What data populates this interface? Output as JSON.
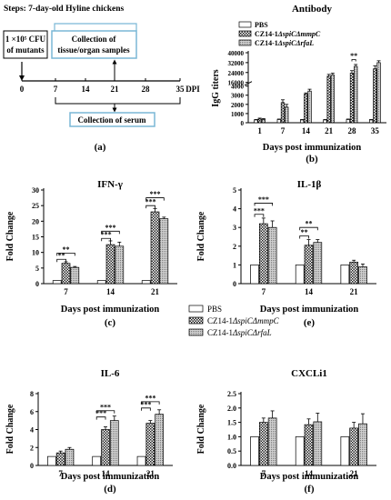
{
  "colors": {
    "pbs": "#ffffff",
    "mmpC": "#555555",
    "rfaL": "#bdbdbd",
    "ink": "#000000",
    "box": "#7ab7d6"
  },
  "labels": {
    "pbs": "PBS",
    "mmpC_pre": "CZ14-1",
    "mmpC_it": "ΔspiCΔmmpC",
    "rfaL_pre": "CZ14-1",
    "rfaL_it": "ΔspiCΔrfaL"
  },
  "panel_a": {
    "steps": "Steps: 7-day-old Hyline chickens",
    "inoc_line1": "1 ×10⁵ CFU",
    "inoc_line2": "of mutants",
    "collect_line1": "Collection of",
    "collect_line2": "tissue/organ samples",
    "serum": "Collection of serum",
    "ticks": [
      "0",
      "7",
      "14",
      "21",
      "28",
      "35"
    ],
    "unit": "DPI",
    "caption": "(a)"
  },
  "chart_data": [
    {
      "id": "b",
      "type": "bar",
      "title": "Antibody",
      "ylabel": "IgG titers",
      "xlabel": "Days post immunization",
      "caption": "(b)",
      "categories": [
        "1",
        "7",
        "14",
        "21",
        "28",
        "35"
      ],
      "yticks": [
        "0",
        "1000",
        "2000",
        "3000",
        "4000",
        "16000",
        "24000",
        "32000",
        "40000"
      ],
      "series": [
        {
          "name": "PBS",
          "values": [
            300,
            350,
            300,
            300,
            350,
            300
          ],
          "err": [
            50,
            50,
            50,
            50,
            50,
            50
          ]
        },
        {
          "name": "CZ14-1ΔspiCΔmmpC",
          "values": [
            400,
            2200,
            6500,
            21000,
            23500,
            27000
          ],
          "err": [
            100,
            300,
            1000,
            1500,
            2000,
            2500
          ]
        },
        {
          "name": "CZ14-1ΔspiCΔrfaL",
          "values": [
            350,
            1700,
            9000,
            22000,
            29000,
            32000
          ],
          "err": [
            100,
            300,
            1500,
            1500,
            1500,
            1500
          ]
        }
      ],
      "annotations": [
        {
          "category": "28",
          "text": "**"
        }
      ]
    },
    {
      "id": "c",
      "type": "bar",
      "title": "IFN-γ",
      "ylabel": "Fold Change",
      "xlabel": "Days post immunization",
      "caption": "(c)",
      "categories": [
        "7",
        "14",
        "21"
      ],
      "ylim": [
        0,
        30
      ],
      "yticks": [
        "0",
        "5",
        "10",
        "15",
        "20",
        "25",
        "30"
      ],
      "series": [
        {
          "name": "PBS",
          "values": [
            1,
            1,
            1
          ],
          "err": [
            0,
            0,
            0
          ]
        },
        {
          "name": "CZ14-1ΔspiCΔmmpC",
          "values": [
            6.5,
            12.5,
            23
          ],
          "err": [
            0.5,
            1.2,
            1
          ]
        },
        {
          "name": "CZ14-1ΔspiCΔrfaL",
          "values": [
            5.2,
            12,
            20.8
          ],
          "err": [
            0.3,
            1.3,
            0.5
          ]
        }
      ],
      "brackets": [
        {
          "category": "7",
          "from": 0,
          "to": 1,
          "y": 7.8,
          "text": "**"
        },
        {
          "category": "7",
          "from": 0,
          "to": 2,
          "y": 9.8,
          "text": "**"
        },
        {
          "category": "14",
          "from": 0,
          "to": 1,
          "y": 14.5,
          "text": "***"
        },
        {
          "category": "14",
          "from": 0,
          "to": 2,
          "y": 16.8,
          "text": "***"
        },
        {
          "category": "21",
          "from": 0,
          "to": 1,
          "y": 25,
          "text": "***"
        },
        {
          "category": "21",
          "from": 0,
          "to": 2,
          "y": 27.5,
          "text": "***"
        }
      ]
    },
    {
      "id": "e",
      "type": "bar",
      "title": "IL-1β",
      "ylabel": "Fold Change",
      "xlabel": "Days post immunization",
      "caption": "(e)",
      "categories": [
        "7",
        "14",
        "21"
      ],
      "ylim": [
        0,
        5
      ],
      "yticks": [
        "0",
        "1",
        "2",
        "3",
        "4",
        "5"
      ],
      "series": [
        {
          "name": "PBS",
          "values": [
            1,
            1,
            1
          ],
          "err": [
            0,
            0,
            0
          ]
        },
        {
          "name": "CZ14-1ΔspiCΔmmpC",
          "values": [
            3.2,
            2.05,
            1.15
          ],
          "err": [
            0.3,
            0.3,
            0.1
          ]
        },
        {
          "name": "CZ14-1ΔspiCΔrfaL",
          "values": [
            3,
            2.2,
            0.9
          ],
          "err": [
            0.35,
            0.15,
            0.15
          ]
        }
      ],
      "brackets": [
        {
          "category": "7",
          "from": 0,
          "to": 1,
          "y": 3.7,
          "text": "***"
        },
        {
          "category": "7",
          "from": 0,
          "to": 2,
          "y": 4.3,
          "text": "***"
        },
        {
          "category": "14",
          "from": 0,
          "to": 1,
          "y": 2.55,
          "text": "**"
        },
        {
          "category": "14",
          "from": 0,
          "to": 2,
          "y": 3.0,
          "text": "**"
        }
      ]
    },
    {
      "id": "d",
      "type": "bar",
      "title": "IL-6",
      "ylabel": "Fold Change",
      "xlabel": "Days post immunization",
      "caption": "(d)",
      "categories": [
        "7",
        "14",
        "21"
      ],
      "ylim": [
        0,
        8
      ],
      "yticks": [
        "0",
        "2",
        "4",
        "6",
        "8"
      ],
      "series": [
        {
          "name": "PBS",
          "values": [
            1,
            1,
            1
          ],
          "err": [
            0,
            0,
            0
          ]
        },
        {
          "name": "CZ14-1ΔspiCΔmmpC",
          "values": [
            1.4,
            4,
            4.7
          ],
          "err": [
            0.2,
            0.3,
            0.3
          ]
        },
        {
          "name": "CZ14-1ΔspiCΔrfaL",
          "values": [
            1.8,
            5,
            5.7
          ],
          "err": [
            0.2,
            0.5,
            0.5
          ]
        }
      ],
      "brackets": [
        {
          "category": "14",
          "from": 0,
          "to": 1,
          "y": 5.4,
          "text": "***"
        },
        {
          "category": "14",
          "from": 0,
          "to": 2,
          "y": 6.1,
          "text": "***"
        },
        {
          "category": "21",
          "from": 0,
          "to": 1,
          "y": 6.4,
          "text": "***"
        },
        {
          "category": "21",
          "from": 0,
          "to": 2,
          "y": 7.1,
          "text": "***"
        }
      ]
    },
    {
      "id": "f",
      "type": "bar",
      "title": "CXCLi1",
      "ylabel": "Fold Change",
      "xlabel": "Days post immunization",
      "caption": "(f)",
      "categories": [
        "7",
        "14",
        "21"
      ],
      "ylim": [
        0,
        2.5
      ],
      "yticks": [
        "0.0",
        "0.5",
        "1.0",
        "1.5",
        "2.0",
        "2.5"
      ],
      "series": [
        {
          "name": "PBS",
          "values": [
            1,
            1,
            1
          ],
          "err": [
            0,
            0,
            0
          ]
        },
        {
          "name": "CZ14-1ΔspiCΔmmpC",
          "values": [
            1.5,
            1.42,
            1.3
          ],
          "err": [
            0.15,
            0.2,
            0.2
          ]
        },
        {
          "name": "CZ14-1ΔspiCΔrfaL",
          "values": [
            1.65,
            1.52,
            1.45
          ],
          "err": [
            0.25,
            0.3,
            0.35
          ]
        }
      ],
      "brackets": []
    }
  ]
}
